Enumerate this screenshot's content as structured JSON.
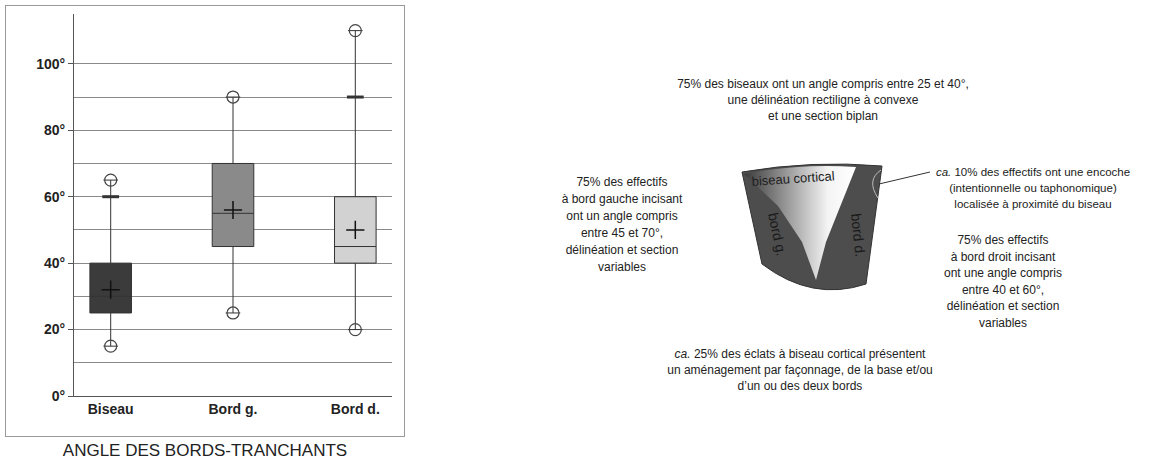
{
  "chart_data": {
    "type": "box",
    "title": "ANGLE DES BORDS-TRANCHANTS",
    "categories": [
      "Biseau",
      "Bord g.",
      "Bord d."
    ],
    "series": [
      {
        "name": "Biseau",
        "color": "#3b3b3b",
        "q1": 25,
        "median": 30,
        "q3": 40,
        "lowerfence": 15,
        "upperfence": 65,
        "mean": 32,
        "circles": [
          15,
          65
        ],
        "dashes": [
          60
        ]
      },
      {
        "name": "Bord g.",
        "color": "#8a8a8a",
        "q1": 45,
        "median": 55,
        "q3": 70,
        "lowerfence": 25,
        "upperfence": 90,
        "mean": 56,
        "circles": [
          25,
          90
        ],
        "dashes": []
      },
      {
        "name": "Bord d.",
        "color": "#d2d2d2",
        "q1": 40,
        "median": 45,
        "q3": 60,
        "lowerfence": 20,
        "upperfence": 110,
        "mean": 50,
        "circles": [
          20,
          110
        ],
        "dashes": [
          90
        ]
      }
    ],
    "ylim": [
      0,
      115
    ],
    "yticks": [
      {
        "value": 0,
        "label": "0°"
      },
      {
        "value": 20,
        "label": "20°"
      },
      {
        "value": 40,
        "label": "40°"
      },
      {
        "value": 60,
        "label": "60°"
      },
      {
        "value": 80,
        "label": "80°"
      },
      {
        "value": 100,
        "label": "100°"
      }
    ],
    "grid": true
  },
  "diagram": {
    "shape_labels": {
      "bevel": "biseau cortical",
      "left": "bord g.",
      "right": "bord d."
    },
    "notes": [
      {
        "position": "top",
        "lines": [
          "75% des biseaux ont un angle compris entre 25 et 40°,",
          "une délinéation rectiligne à convexe",
          "et une section biplan"
        ]
      },
      {
        "position": "left",
        "lines": [
          "75% des effectifs",
          "à bord gauche incisant",
          "ont un angle compris",
          "entre 45 et 70°,",
          "délinéation et section",
          "variables"
        ]
      },
      {
        "position": "right-top",
        "lines": [
          [
            {
              "text": "ca.",
              "italic": true
            },
            {
              "text": " 10% des effectifs ont une encoche"
            }
          ],
          "(intentionnelle ou taphonomique)",
          "localisée à proximité du biseau"
        ]
      },
      {
        "position": "right",
        "lines": [
          "75% des effectifs",
          "à bord droit incisant",
          "ont une angle compris",
          "entre 40 et 60°,",
          "délinéation et section",
          "variables"
        ]
      },
      {
        "position": "bottom",
        "lines": [
          [
            {
              "text": "ca.",
              "italic": true
            },
            {
              "text": " 25% des éclats à biseau cortical présentent"
            }
          ],
          "un aménagement par façonnage, de la base et/ou",
          "d’un ou des deux bords"
        ]
      }
    ]
  }
}
